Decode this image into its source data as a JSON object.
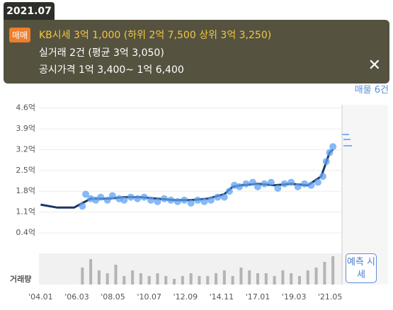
{
  "tooltip": {
    "date": "2021.07",
    "badge": "매매",
    "kb": "KB시세 3억 1,000 (하위 2억 7,500 상위 3억 3,250)",
    "trade": "실거래 2건 (평균 3억 3,050)",
    "official": "공시가격 1억 3,400~ 1억 6,400"
  },
  "listing": "매물 6건",
  "forecast_button": "예측 시세",
  "chart_data": [
    {
      "type": "line",
      "xlim": [
        2003.9,
        2024.8
      ],
      "ylim": [
        -0.1,
        4.9
      ],
      "xticks": [
        {
          "value": 2004.0,
          "label": "'04.01"
        },
        {
          "value": 2006.17,
          "label": "'06.03"
        },
        {
          "value": 2008.33,
          "label": "'08.05"
        },
        {
          "value": 2010.5,
          "label": "'10.07"
        },
        {
          "value": 2012.67,
          "label": "'12.09"
        },
        {
          "value": 2014.83,
          "label": "'14.11"
        },
        {
          "value": 2017.0,
          "label": "'17.01"
        },
        {
          "value": 2019.17,
          "label": "'19.03"
        },
        {
          "value": 2021.33,
          "label": "'21.05"
        }
      ],
      "yticks": [
        {
          "value": 4.6,
          "label": "4.6억"
        },
        {
          "value": 3.9,
          "label": "3.9억"
        },
        {
          "value": 3.2,
          "label": "3.2억"
        },
        {
          "value": 2.5,
          "label": "2.5억"
        },
        {
          "value": 1.8,
          "label": "1.8억"
        },
        {
          "value": 1.1,
          "label": "1.1억"
        },
        {
          "value": 0.4,
          "label": "0.4억"
        }
      ],
      "series": [
        {
          "name": "KB시세",
          "color": "#1b3566",
          "x": [
            2004.0,
            2005.0,
            2006.0,
            2006.5,
            2007.0,
            2008.0,
            2009.0,
            2010.0,
            2011.0,
            2012.0,
            2013.0,
            2014.0,
            2015.0,
            2015.5,
            2016.0,
            2017.0,
            2018.0,
            2019.0,
            2020.0,
            2020.8,
            2021.3,
            2021.5
          ],
          "values": [
            1.35,
            1.25,
            1.25,
            1.4,
            1.55,
            1.55,
            1.6,
            1.6,
            1.55,
            1.5,
            1.5,
            1.55,
            1.7,
            1.95,
            2.0,
            2.05,
            2.0,
            2.05,
            2.0,
            2.3,
            3.1,
            3.2
          ]
        },
        {
          "name": "실거래",
          "color": "#5ea2f3",
          "x": [
            2006.5,
            2006.7,
            2007.0,
            2007.3,
            2007.6,
            2008.0,
            2008.3,
            2008.7,
            2009.0,
            2009.4,
            2009.8,
            2010.2,
            2010.6,
            2011.0,
            2011.4,
            2011.8,
            2012.2,
            2012.6,
            2013.0,
            2013.4,
            2013.8,
            2014.2,
            2014.6,
            2015.0,
            2015.3,
            2015.6,
            2015.9,
            2016.3,
            2016.7,
            2017.0,
            2017.4,
            2017.8,
            2018.2,
            2018.6,
            2019.0,
            2019.4,
            2019.8,
            2020.2,
            2020.6,
            2020.9,
            2021.1,
            2021.3,
            2021.5
          ],
          "values": [
            1.3,
            1.7,
            1.55,
            1.5,
            1.6,
            1.5,
            1.65,
            1.55,
            1.5,
            1.6,
            1.55,
            1.6,
            1.5,
            1.45,
            1.55,
            1.5,
            1.45,
            1.5,
            1.4,
            1.5,
            1.45,
            1.5,
            1.6,
            1.6,
            1.8,
            2.0,
            1.95,
            2.05,
            2.1,
            1.95,
            2.05,
            2.1,
            1.9,
            2.05,
            2.1,
            1.95,
            2.05,
            2.0,
            2.1,
            2.3,
            2.8,
            3.1,
            3.3
          ]
        }
      ]
    },
    {
      "type": "bar",
      "title": "거래량",
      "color": "#b4b4b4",
      "xlim": [
        2003.9,
        2024.8
      ],
      "ylim": [
        0,
        10
      ],
      "x": [
        2006.5,
        2007.0,
        2007.5,
        2008.0,
        2008.5,
        2009.0,
        2009.5,
        2010.0,
        2010.5,
        2011.0,
        2011.5,
        2012.0,
        2012.5,
        2013.0,
        2013.5,
        2014.0,
        2014.5,
        2015.0,
        2015.5,
        2016.0,
        2016.5,
        2017.0,
        2017.5,
        2018.0,
        2018.5,
        2019.0,
        2019.5,
        2020.0,
        2020.5,
        2021.0,
        2021.5
      ],
      "values": [
        6,
        9,
        5,
        4,
        7,
        3,
        5,
        4,
        3,
        4,
        3,
        2,
        3,
        4,
        3,
        3,
        4,
        5,
        3,
        6,
        5,
        4,
        4,
        3,
        5,
        4,
        3,
        5,
        6,
        8,
        10
      ]
    }
  ]
}
